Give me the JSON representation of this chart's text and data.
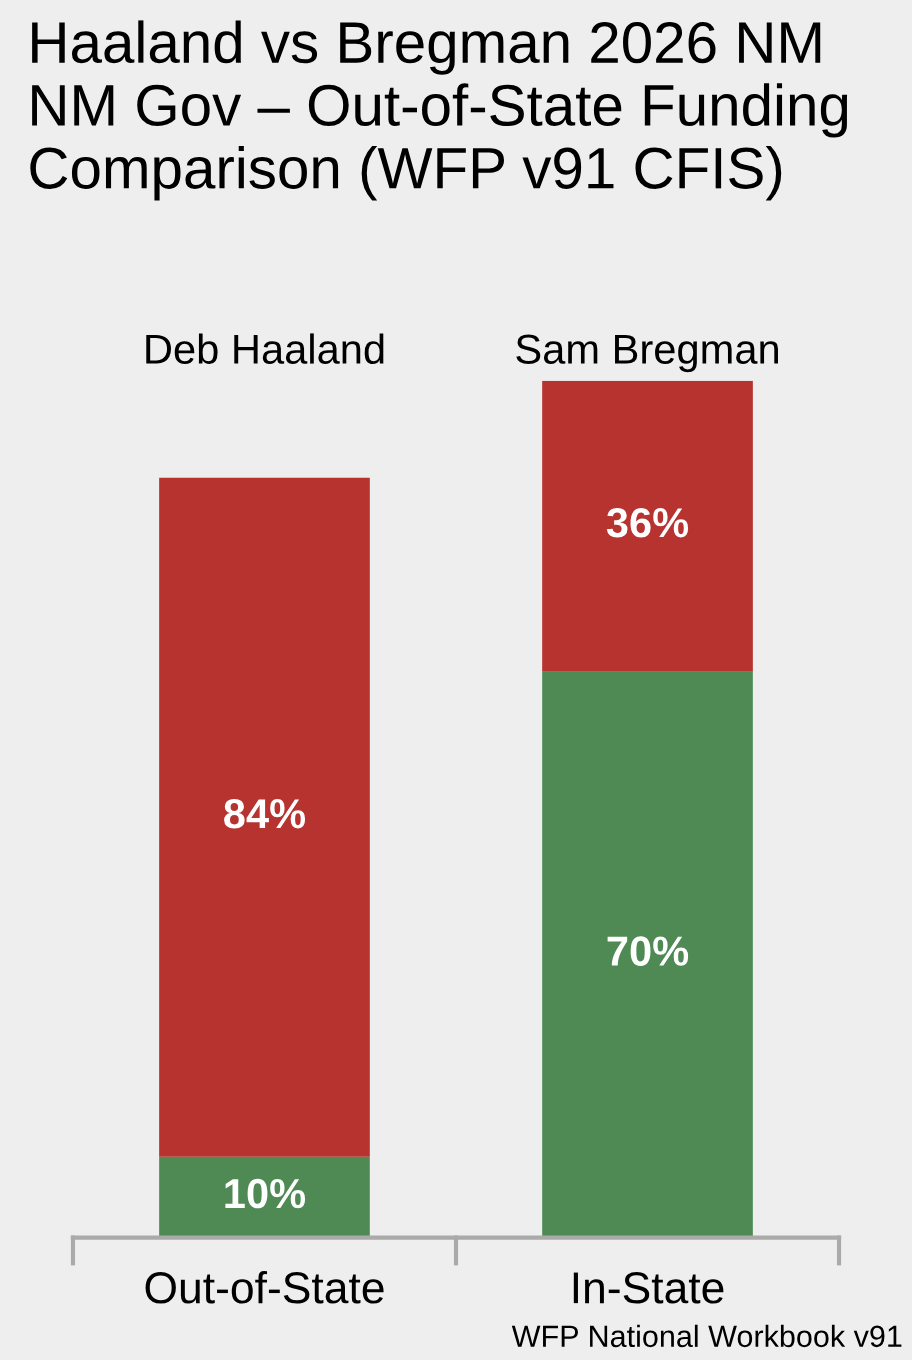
{
  "chart_data": {
    "type": "bar",
    "stacked": true,
    "title": "Haaland vs Bregman 2026 NM NM Gov – Out-of-State Funding Comparison (WFP v91 CFIS)",
    "categories": [
      "Out-of-State",
      "In-State"
    ],
    "series": [
      {
        "color": "#4f8a55",
        "values": [
          10,
          70
        ],
        "value_labels": [
          "10%",
          "70%"
        ]
      },
      {
        "color": "#b7332f",
        "values": [
          84,
          36
        ],
        "value_labels": [
          "84%",
          "36%"
        ]
      }
    ],
    "annotations": [
      "Deb Haaland",
      "Sam Bregman",
      "WFP National Workbook v91"
    ],
    "grid": false,
    "tick_labels": "x"
  }
}
